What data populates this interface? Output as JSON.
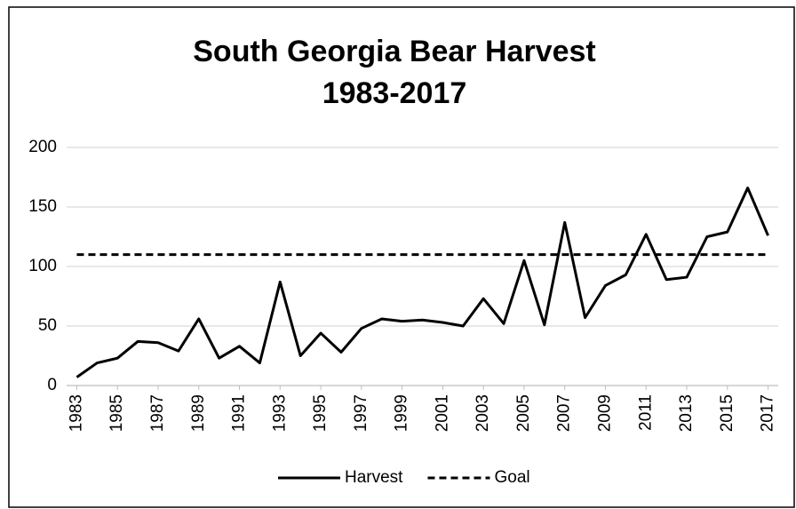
{
  "chart_data": {
    "type": "line",
    "title": [
      "South Georgia Bear Harvest",
      "1983-2017"
    ],
    "x": [
      1983,
      1984,
      1985,
      1986,
      1987,
      1988,
      1989,
      1990,
      1991,
      1992,
      1993,
      1994,
      1995,
      1996,
      1997,
      1998,
      1999,
      2000,
      2001,
      2002,
      2003,
      2004,
      2005,
      2006,
      2007,
      2008,
      2009,
      2010,
      2011,
      2012,
      2013,
      2014,
      2015,
      2016,
      2017
    ],
    "series": [
      {
        "name": "Harvest",
        "color": "#000000",
        "line_style": "solid",
        "values": [
          7,
          19,
          23,
          37,
          36,
          29,
          56,
          23,
          33,
          19,
          87,
          25,
          44,
          28,
          48,
          56,
          54,
          55,
          53,
          50,
          73,
          52,
          105,
          51,
          137,
          57,
          84,
          93,
          127,
          89,
          91,
          125,
          129,
          166,
          126
        ]
      },
      {
        "name": "Goal",
        "color": "#000000",
        "line_style": "dashed",
        "values": [
          110,
          110,
          110,
          110,
          110,
          110,
          110,
          110,
          110,
          110,
          110,
          110,
          110,
          110,
          110,
          110,
          110,
          110,
          110,
          110,
          110,
          110,
          110,
          110,
          110,
          110,
          110,
          110,
          110,
          110,
          110,
          110,
          110,
          110,
          110
        ]
      }
    ],
    "xlim": [
      1982.5,
      2017.5
    ],
    "xticks": [
      1983,
      1985,
      1987,
      1989,
      1991,
      1993,
      1995,
      1997,
      1999,
      2001,
      2003,
      2005,
      2007,
      2009,
      2011,
      2013,
      2015,
      2017
    ],
    "ylim": [
      0,
      200
    ],
    "yticks": [
      0,
      50,
      100,
      150,
      200
    ],
    "grid": true,
    "legend": "bottom"
  }
}
